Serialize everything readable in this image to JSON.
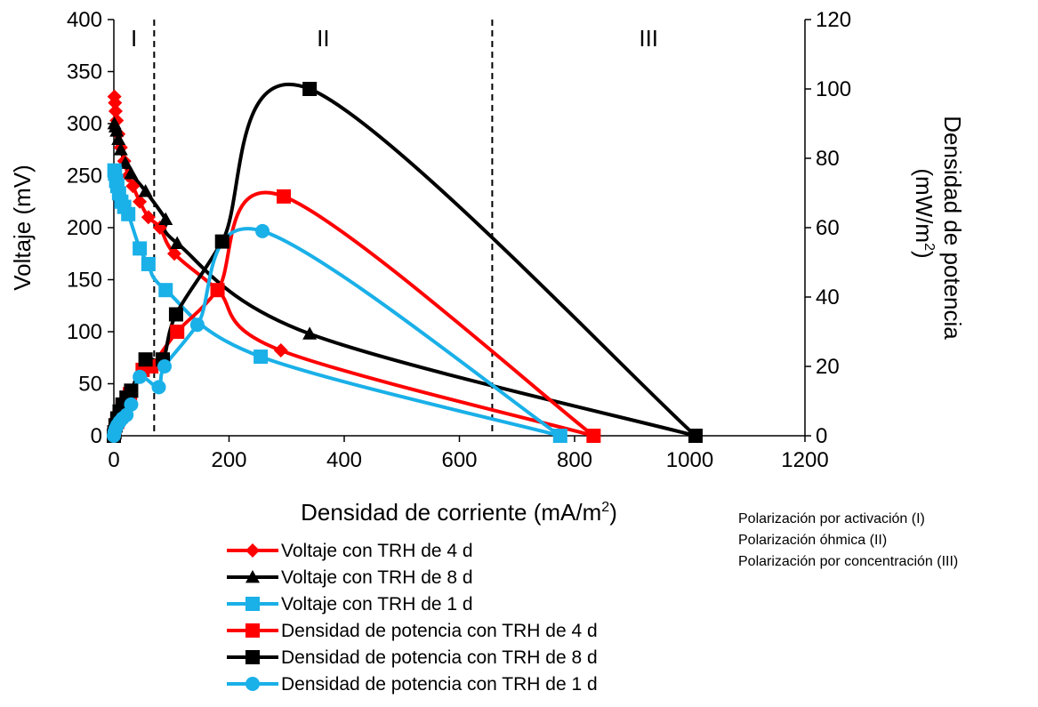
{
  "chart_data": {
    "type": "line",
    "xlabel": "Densidad de corriente (mA/m",
    "xlabel_sup": "2",
    "xlabel_end": ")",
    "ylabel": "Voltaje (mV)",
    "y2label_line1": "Densidad de potencia",
    "y2label_line2": "(mW/m",
    "y2label_sup": "2",
    "y2label_end": ")",
    "xlim": [
      0,
      1200
    ],
    "ylim": [
      0,
      400
    ],
    "y2lim": [
      0,
      120
    ],
    "xticks": [
      "0",
      "200",
      "400",
      "600",
      "800",
      "1000",
      "1200"
    ],
    "yticks": [
      "0",
      "50",
      "100",
      "150",
      "200",
      "250",
      "300",
      "350",
      "400"
    ],
    "y2ticks": [
      "0",
      "20",
      "40",
      "60",
      "80",
      "100",
      "120"
    ],
    "grid": false,
    "legend_position": "bottom",
    "regions": [
      {
        "label": "I",
        "x_start": 0,
        "x_end": 70
      },
      {
        "label": "II",
        "x_start": 70,
        "x_end": 657
      },
      {
        "label": "III",
        "x_start": 657,
        "x_end": 1200
      }
    ],
    "region_boundaries": [
      70,
      657
    ],
    "series": [
      {
        "name": "Voltaje con TRH de 4 d",
        "axis": "left",
        "color": "#ff0000",
        "marker": "diamond",
        "x": [
          1,
          2,
          3,
          5,
          8,
          12,
          18,
          25,
          33,
          45,
          60,
          80,
          105,
          180,
          290,
          833
        ],
        "y": [
          326,
          320,
          312,
          303,
          290,
          277,
          264,
          250,
          240,
          225,
          210,
          200,
          175,
          140,
          82,
          0
        ]
      },
      {
        "name": "Voltaje con TRH de 8 d",
        "axis": "left",
        "color": "#000000",
        "marker": "triangle",
        "x": [
          1,
          3,
          5,
          8,
          12,
          20,
          30,
          55,
          90,
          110,
          340,
          1010
        ],
        "y": [
          300,
          297,
          293,
          285,
          275,
          262,
          252,
          235,
          208,
          185,
          98,
          0
        ]
      },
      {
        "name": "Voltaje con TRH de 1 d",
        "axis": "left",
        "color": "#1ab0e8",
        "marker": "square",
        "x": [
          1,
          2,
          4,
          6,
          9,
          13,
          18,
          25,
          45,
          60,
          90,
          255,
          775
        ],
        "y": [
          255,
          252,
          245,
          240,
          233,
          225,
          220,
          213,
          180,
          165,
          140,
          76,
          0
        ]
      },
      {
        "name": "Densidad de potencia con TRH de 4 d",
        "axis": "right",
        "color": "#ff0000",
        "marker": "square",
        "x": [
          0,
          1,
          3,
          6,
          10,
          15,
          20,
          28,
          50,
          65,
          110,
          180,
          295,
          833
        ],
        "y": [
          0,
          1,
          3,
          4,
          6,
          8,
          9,
          12,
          19,
          20,
          30,
          42,
          69,
          0
        ]
      },
      {
        "name": "Densidad de potencia con TRH de 8 d",
        "axis": "right",
        "color": "#000000",
        "marker": "square",
        "x": [
          0,
          1,
          3,
          6,
          10,
          15,
          22,
          30,
          55,
          85,
          108,
          188,
          340,
          1010
        ],
        "y": [
          0,
          1,
          3,
          5,
          7,
          9,
          11,
          13,
          22,
          22,
          35,
          56,
          100,
          0
        ]
      },
      {
        "name": "Densidad de potencia con TRH de 1 d",
        "axis": "right",
        "color": "#1ab0e8",
        "marker": "circle",
        "x": [
          0,
          1,
          3,
          6,
          10,
          15,
          22,
          30,
          45,
          78,
          88,
          145,
          258,
          775
        ],
        "y": [
          0,
          1,
          2,
          3,
          4,
          5,
          6,
          9,
          17,
          14,
          20,
          32,
          59,
          0
        ]
      }
    ],
    "annotations": [
      "Polarización por activación (I)",
      "Polarización óhmica (II)",
      "Polarización por concentración (III)"
    ]
  }
}
